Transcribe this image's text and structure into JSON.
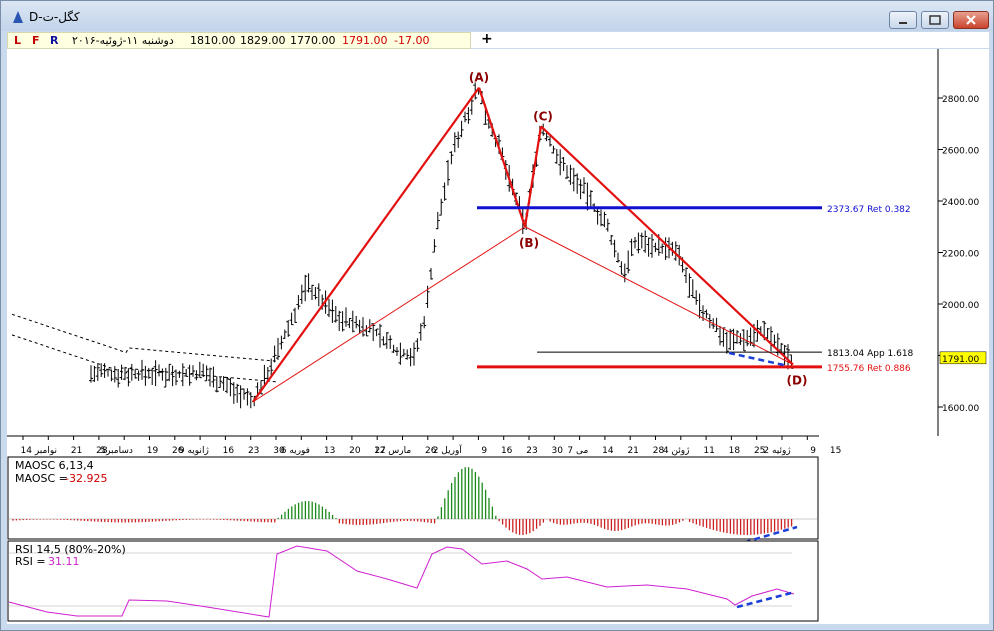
{
  "window": {
    "title": "D-کگل-ت",
    "buttons": [
      "minimize",
      "maximize",
      "close"
    ]
  },
  "toolbar": {
    "L": "L",
    "F": "F",
    "R": "R",
    "date": "دوشنبه ۱۱-ژوئیه-۲۰۱۶",
    "open": "1810.00",
    "high": "1829.00",
    "low": "1770.00",
    "close": "1791.00",
    "change": "-17.00",
    "plus": "+"
  },
  "colors": {
    "pattern": "#e31010",
    "retracement": "#1010d0",
    "bars": "#000000",
    "macd_pos": "#1b8a1b",
    "macd_neg": "#cc2020",
    "rsi": "#d020d0",
    "divergence": "#1a3fd8",
    "pattern_label": "#8b0000"
  },
  "chart_data": [
    {
      "type": "ohlc",
      "price_axis_ticks": [
        "1600.00",
        "1800.00",
        "2000.00",
        "2200.00",
        "2400.00",
        "2600.00",
        "2800.00"
      ],
      "x_tick_labels": [
        "14 نوامبر",
        "21",
        "28",
        "دسامبر5",
        "19",
        "26",
        "9 ژانویه",
        "16",
        "23",
        "30",
        "فوریه 6",
        "13",
        "20",
        "27",
        "مارس 12",
        "26",
        "آوریل 2",
        "9",
        "16",
        "23",
        "30",
        "می 7",
        "14",
        "21",
        "28",
        "ژوئن 4",
        "11",
        "18",
        "25",
        "ژوئیه 2",
        "9",
        "15"
      ],
      "last_price": "1791.00",
      "pattern": {
        "points": [
          {
            "label": "(A)",
            "value": 2840
          },
          {
            "label": "(B)",
            "value": 2300
          },
          {
            "label": "(C)",
            "value": 2690
          },
          {
            "label": "(D)",
            "value": 1765
          }
        ],
        "start_value": 1620
      },
      "levels": [
        {
          "value": 2373.67,
          "label": "2373.67 Ret 0.382",
          "color": "#1010d0"
        },
        {
          "value": 1813.04,
          "label": "1813.04 App 1.618",
          "color": "#000000"
        },
        {
          "value": 1755.76,
          "label": "1755.76 Ret 0.886",
          "color": "#e31010"
        }
      ]
    },
    {
      "type": "bar",
      "title": "MAOSC 6,13,4",
      "value_label": "MAOSC =",
      "value": "-32.925"
    },
    {
      "type": "line",
      "title": "RSI 14,5 (80%-20%)",
      "value_label": "RSI =",
      "value": "31.11"
    }
  ]
}
